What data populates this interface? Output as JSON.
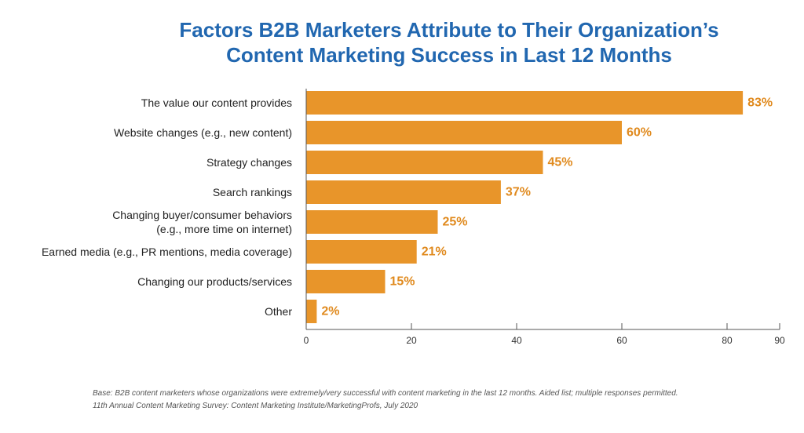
{
  "chart_data": {
    "type": "bar",
    "orientation": "horizontal",
    "title_lines": [
      "Factors B2B Marketers Attribute to Their Organization’s",
      "Content Marketing Success in Last 12 Months"
    ],
    "categories": [
      [
        "The value our content provides"
      ],
      [
        "Website changes (e.g., new content)"
      ],
      [
        "Strategy changes"
      ],
      [
        "Search rankings"
      ],
      [
        "Changing buyer/consumer behaviors",
        "(e.g., more time on internet)"
      ],
      [
        "Earned media (e.g., PR mentions, media coverage)"
      ],
      [
        "Changing our products/services"
      ],
      [
        "Other"
      ]
    ],
    "values": [
      83,
      60,
      45,
      37,
      25,
      21,
      15,
      2
    ],
    "value_labels": [
      "83%",
      "60%",
      "45%",
      "37%",
      "25%",
      "21%",
      "15%",
      "2%"
    ],
    "xlim": [
      0,
      90
    ],
    "xticks": [
      0,
      20,
      40,
      60,
      80,
      90
    ],
    "grid": false,
    "legend": "none",
    "bar_color": "#e8952a",
    "value_label_color": "#e08a1e",
    "title_color": "#2167b0"
  },
  "footnote": {
    "line1": "Base: B2B content marketers whose organizations were extremely/very successful with content marketing in the last 12 months. Aided list; multiple responses permitted.",
    "line2": "11th Annual Content Marketing Survey: Content Marketing Institute/MarketingProfs, July 2020"
  }
}
